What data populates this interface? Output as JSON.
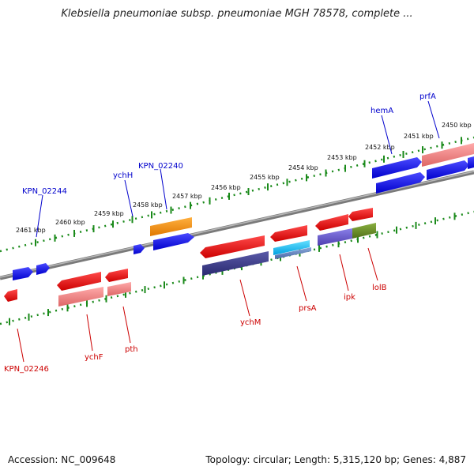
{
  "title": "Klebsiella pneumoniae subsp. pneumoniae MGH 78578, complete ...",
  "footer": {
    "accession": "Accession: NC_009648",
    "summary": "Topology: circular; Length: 5,315,120 bp; Genes: 4,887"
  },
  "scale_labels": [
    "2461 kbp",
    "2460 kbp",
    "2459 kbp",
    "2458 kbp",
    "2457 kbp",
    "2456 kbp",
    "2455 kbp",
    "2454 kbp",
    "2453 kbp",
    "2452 kbp",
    "2451 kbp",
    "2450 kbp"
  ],
  "genes_forward": [
    "KPN_02244",
    "ychH",
    "KPN_02240",
    "hemA",
    "prfA"
  ],
  "genes_reverse": [
    "KPN_02246",
    "ychF",
    "pth",
    "ychM",
    "prsA",
    "ipk",
    "lolB"
  ],
  "colors": {
    "forward_label": "#0000cc",
    "reverse_label": "#cc0000",
    "forward_gene": "#0000ee",
    "reverse_gene": "#ee0000",
    "tick": "#1a8a1a",
    "backbone": "#888888"
  }
}
